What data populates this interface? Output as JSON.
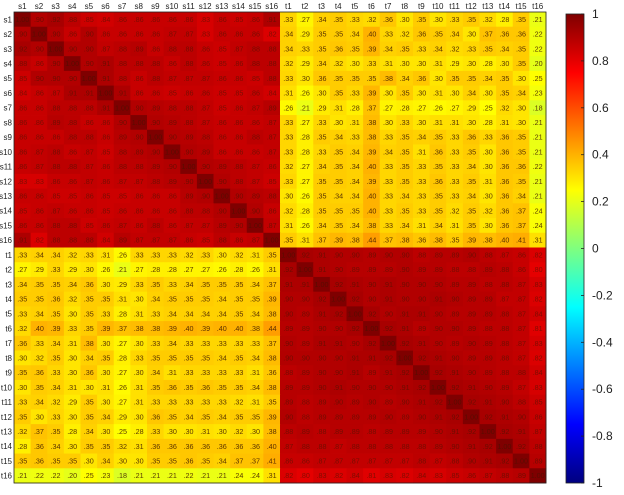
{
  "chart_data": {
    "type": "heatmap",
    "title": "",
    "xlabel": "",
    "ylabel": "",
    "labels": [
      "s1",
      "s2",
      "s3",
      "s4",
      "s5",
      "s6",
      "s7",
      "s8",
      "s9",
      "s10",
      "s11",
      "s12",
      "s13",
      "s14",
      "s15",
      "s16",
      "t1",
      "t2",
      "t3",
      "t4",
      "t5",
      "t6",
      "t7",
      "t8",
      "t9",
      "t10",
      "t11",
      "t12",
      "t13",
      "t14",
      "t15",
      "t16"
    ],
    "vmin": -1,
    "vmax": 1,
    "colorbar_ticks": [
      -1,
      -0.8,
      -0.6,
      -0.4,
      -0.2,
      0,
      0.2,
      0.4,
      0.6,
      0.8,
      1
    ],
    "colorbar_tick_labels": [
      "-1",
      "-0.8",
      "-0.6",
      "-0.4",
      "-0.2",
      "0",
      "0.2",
      "0.4",
      "0.6",
      "0.8",
      "1"
    ],
    "colormap": "jet",
    "colormap_stops": [
      "#00007f",
      "#0000ff",
      "#007fff",
      "#00ffff",
      "#7fff7f",
      "#ffff00",
      "#ff7f00",
      "#ff0000",
      "#7f0000"
    ],
    "within_s_values": [
      [
        1.0,
        0.9,
        0.92,
        0.88,
        0.85,
        0.84,
        0.86,
        0.86,
        0.86,
        0.86,
        0.86,
        0.83,
        0.86,
        0.85,
        0.86,
        0.91
      ],
      [
        0.9,
        1.0,
        0.9,
        0.86,
        0.9,
        0.86,
        0.86,
        0.86,
        0.86,
        0.87,
        0.87,
        0.83,
        0.86,
        0.86,
        0.86,
        0.82
      ],
      [
        0.92,
        0.9,
        1.0,
        0.9,
        0.9,
        0.87,
        0.88,
        0.89,
        0.86,
        0.88,
        0.88,
        0.86,
        0.85,
        0.87,
        0.88,
        0.88
      ],
      [
        0.88,
        0.86,
        0.9,
        1.0,
        0.9,
        0.91,
        0.88,
        0.88,
        0.88,
        0.86,
        0.88,
        0.86,
        0.85,
        0.86,
        0.88,
        0.88
      ],
      [
        0.85,
        0.9,
        0.9,
        0.9,
        1.0,
        0.91,
        0.88,
        0.86,
        0.88,
        0.87,
        0.87,
        0.87,
        0.86,
        0.86,
        0.85,
        0.88
      ],
      [
        0.84,
        0.86,
        0.87,
        0.91,
        0.91,
        1.0,
        0.91,
        0.86,
        0.86,
        0.85,
        0.86,
        0.86,
        0.85,
        0.85,
        0.86,
        0.84
      ],
      [
        0.86,
        0.86,
        0.88,
        0.88,
        0.88,
        0.91,
        1.0,
        0.9,
        0.89,
        0.88,
        0.88,
        0.87,
        0.85,
        0.86,
        0.87,
        0.89
      ],
      [
        0.86,
        0.86,
        0.89,
        0.88,
        0.86,
        0.86,
        0.9,
        1.0,
        0.9,
        0.89,
        0.88,
        0.87,
        0.86,
        0.86,
        0.86,
        0.87
      ],
      [
        0.86,
        0.86,
        0.86,
        0.88,
        0.88,
        0.86,
        0.89,
        0.9,
        1.0,
        0.9,
        0.89,
        0.88,
        0.86,
        0.86,
        0.88,
        0.87
      ],
      [
        0.86,
        0.87,
        0.88,
        0.86,
        0.87,
        0.85,
        0.88,
        0.89,
        0.9,
        1.0,
        0.9,
        0.89,
        0.86,
        0.86,
        0.86,
        0.87
      ],
      [
        0.86,
        0.87,
        0.88,
        0.88,
        0.87,
        0.86,
        0.88,
        0.88,
        0.89,
        0.9,
        1.0,
        0.9,
        0.89,
        0.88,
        0.87,
        0.86
      ],
      [
        0.83,
        0.83,
        0.86,
        0.86,
        0.87,
        0.86,
        0.87,
        0.87,
        0.88,
        0.89,
        0.9,
        1.0,
        0.9,
        0.88,
        0.87,
        0.85
      ],
      [
        0.86,
        0.86,
        0.85,
        0.85,
        0.86,
        0.85,
        0.85,
        0.86,
        0.86,
        0.86,
        0.89,
        0.9,
        1.0,
        0.9,
        0.89,
        0.88
      ],
      [
        0.85,
        0.86,
        0.87,
        0.86,
        0.86,
        0.85,
        0.86,
        0.86,
        0.86,
        0.86,
        0.88,
        0.88,
        0.9,
        1.0,
        0.9,
        0.86
      ],
      [
        0.86,
        0.86,
        0.88,
        0.88,
        0.85,
        0.86,
        0.87,
        0.86,
        0.88,
        0.86,
        0.87,
        0.87,
        0.89,
        0.9,
        1.0,
        0.87
      ],
      [
        0.91,
        0.82,
        0.88,
        0.88,
        0.88,
        0.84,
        0.89,
        0.87,
        0.87,
        0.87,
        0.86,
        0.85,
        0.88,
        0.86,
        0.87,
        1.0
      ]
    ],
    "cross_values_s_by_t": [
      [
        0.33,
        0.27,
        0.34,
        0.35,
        0.33,
        0.32,
        0.36,
        0.3,
        0.35,
        0.3,
        0.33,
        0.35,
        0.32,
        0.28,
        0.35,
        0.21
      ],
      [
        0.34,
        0.29,
        0.35,
        0.35,
        0.34,
        0.4,
        0.33,
        0.32,
        0.36,
        0.35,
        0.34,
        0.3,
        0.37,
        0.36,
        0.36,
        0.22
      ],
      [
        0.34,
        0.33,
        0.35,
        0.36,
        0.35,
        0.39,
        0.34,
        0.35,
        0.33,
        0.34,
        0.32,
        0.33,
        0.35,
        0.34,
        0.35,
        0.22
      ],
      [
        0.32,
        0.29,
        0.34,
        0.32,
        0.3,
        0.33,
        0.31,
        0.3,
        0.3,
        0.31,
        0.29,
        0.3,
        0.28,
        0.3,
        0.35,
        0.2
      ],
      [
        0.33,
        0.3,
        0.36,
        0.35,
        0.35,
        0.35,
        0.38,
        0.34,
        0.36,
        0.3,
        0.35,
        0.35,
        0.34,
        0.35,
        0.3,
        0.25
      ],
      [
        0.31,
        0.26,
        0.3,
        0.35,
        0.33,
        0.39,
        0.3,
        0.35,
        0.3,
        0.31,
        0.3,
        0.34,
        0.3,
        0.35,
        0.34,
        0.23
      ],
      [
        0.26,
        0.21,
        0.29,
        0.31,
        0.28,
        0.37,
        0.27,
        0.28,
        0.27,
        0.26,
        0.27,
        0.29,
        0.25,
        0.32,
        0.3,
        0.18
      ],
      [
        0.33,
        0.27,
        0.33,
        0.3,
        0.31,
        0.38,
        0.3,
        0.33,
        0.3,
        0.31,
        0.31,
        0.3,
        0.28,
        0.31,
        0.3,
        0.21
      ],
      [
        0.33,
        0.28,
        0.35,
        0.34,
        0.33,
        0.38,
        0.33,
        0.35,
        0.34,
        0.35,
        0.33,
        0.36,
        0.33,
        0.36,
        0.35,
        0.21
      ],
      [
        0.33,
        0.28,
        0.33,
        0.35,
        0.34,
        0.39,
        0.34,
        0.35,
        0.31,
        0.36,
        0.33,
        0.35,
        0.3,
        0.36,
        0.35,
        0.21
      ],
      [
        0.32,
        0.27,
        0.34,
        0.35,
        0.34,
        0.4,
        0.33,
        0.35,
        0.33,
        0.35,
        0.33,
        0.34,
        0.3,
        0.36,
        0.36,
        0.22
      ],
      [
        0.33,
        0.27,
        0.35,
        0.35,
        0.34,
        0.39,
        0.33,
        0.35,
        0.33,
        0.36,
        0.33,
        0.35,
        0.31,
        0.36,
        0.35,
        0.21
      ],
      [
        0.3,
        0.26,
        0.35,
        0.34,
        0.34,
        0.4,
        0.33,
        0.34,
        0.33,
        0.35,
        0.33,
        0.34,
        0.3,
        0.36,
        0.34,
        0.21
      ],
      [
        0.32,
        0.28,
        0.35,
        0.35,
        0.35,
        0.4,
        0.33,
        0.35,
        0.33,
        0.35,
        0.32,
        0.35,
        0.32,
        0.36,
        0.37,
        0.24
      ],
      [
        0.31,
        0.26,
        0.34,
        0.35,
        0.34,
        0.38,
        0.33,
        0.34,
        0.31,
        0.34,
        0.31,
        0.35,
        0.3,
        0.36,
        0.37,
        0.24
      ],
      [
        0.35,
        0.31,
        0.37,
        0.39,
        0.38,
        0.44,
        0.37,
        0.38,
        0.36,
        0.38,
        0.35,
        0.39,
        0.38,
        0.4,
        0.41,
        0.31
      ]
    ],
    "within_t_values": [
      [
        1.0,
        0.92,
        0.91,
        0.9,
        0.9,
        0.89,
        0.9,
        0.9,
        0.88,
        0.89,
        0.89,
        0.9,
        0.88,
        0.87,
        0.86,
        0.82
      ],
      [
        0.92,
        1.0,
        0.91,
        0.9,
        0.89,
        0.89,
        0.89,
        0.9,
        0.89,
        0.89,
        0.88,
        0.88,
        0.89,
        0.88,
        0.86,
        0.8
      ],
      [
        0.91,
        0.91,
        1.0,
        0.92,
        0.91,
        0.9,
        0.91,
        0.9,
        0.9,
        0.9,
        0.89,
        0.89,
        0.88,
        0.88,
        0.87,
        0.83
      ],
      [
        0.9,
        0.9,
        0.92,
        1.0,
        0.92,
        0.9,
        0.91,
        0.9,
        0.9,
        0.91,
        0.9,
        0.89,
        0.89,
        0.87,
        0.87,
        0.82
      ],
      [
        0.9,
        0.89,
        0.91,
        0.92,
        1.0,
        0.92,
        0.9,
        0.91,
        0.91,
        0.9,
        0.89,
        0.89,
        0.89,
        0.88,
        0.87,
        0.84
      ],
      [
        0.89,
        0.89,
        0.9,
        0.9,
        0.92,
        1.0,
        0.92,
        0.91,
        0.89,
        0.9,
        0.9,
        0.89,
        0.88,
        0.88,
        0.87,
        0.81
      ],
      [
        0.9,
        0.89,
        0.91,
        0.91,
        0.9,
        0.92,
        1.0,
        0.92,
        0.91,
        0.9,
        0.89,
        0.9,
        0.89,
        0.88,
        0.87,
        0.83
      ],
      [
        0.9,
        0.9,
        0.9,
        0.9,
        0.91,
        0.91,
        0.92,
        1.0,
        0.92,
        0.91,
        0.9,
        0.89,
        0.89,
        0.88,
        0.87,
        0.82
      ],
      [
        0.88,
        0.89,
        0.9,
        0.9,
        0.91,
        0.89,
        0.91,
        0.92,
        1.0,
        0.92,
        0.91,
        0.9,
        0.89,
        0.88,
        0.88,
        0.84
      ],
      [
        0.89,
        0.89,
        0.9,
        0.91,
        0.9,
        0.9,
        0.9,
        0.91,
        0.92,
        1.0,
        0.92,
        0.91,
        0.9,
        0.89,
        0.87,
        0.83
      ],
      [
        0.89,
        0.88,
        0.89,
        0.9,
        0.89,
        0.9,
        0.89,
        0.9,
        0.91,
        0.92,
        1.0,
        0.92,
        0.91,
        0.9,
        0.88,
        0.85
      ],
      [
        0.9,
        0.88,
        0.89,
        0.89,
        0.89,
        0.89,
        0.9,
        0.89,
        0.9,
        0.91,
        0.92,
        1.0,
        0.92,
        0.91,
        0.9,
        0.86
      ],
      [
        0.88,
        0.89,
        0.88,
        0.89,
        0.89,
        0.88,
        0.89,
        0.89,
        0.89,
        0.9,
        0.91,
        0.92,
        1.0,
        0.92,
        0.91,
        0.87
      ],
      [
        0.87,
        0.88,
        0.88,
        0.87,
        0.88,
        0.88,
        0.88,
        0.88,
        0.88,
        0.89,
        0.9,
        0.91,
        0.92,
        1.0,
        0.92,
        0.88
      ],
      [
        0.86,
        0.86,
        0.87,
        0.87,
        0.87,
        0.87,
        0.87,
        0.87,
        0.88,
        0.87,
        0.88,
        0.9,
        0.91,
        0.92,
        1.0,
        0.89
      ],
      [
        0.82,
        0.8,
        0.83,
        0.82,
        0.84,
        0.81,
        0.83,
        0.82,
        0.84,
        0.83,
        0.85,
        0.86,
        0.87,
        0.88,
        0.89,
        1.0
      ]
    ]
  }
}
